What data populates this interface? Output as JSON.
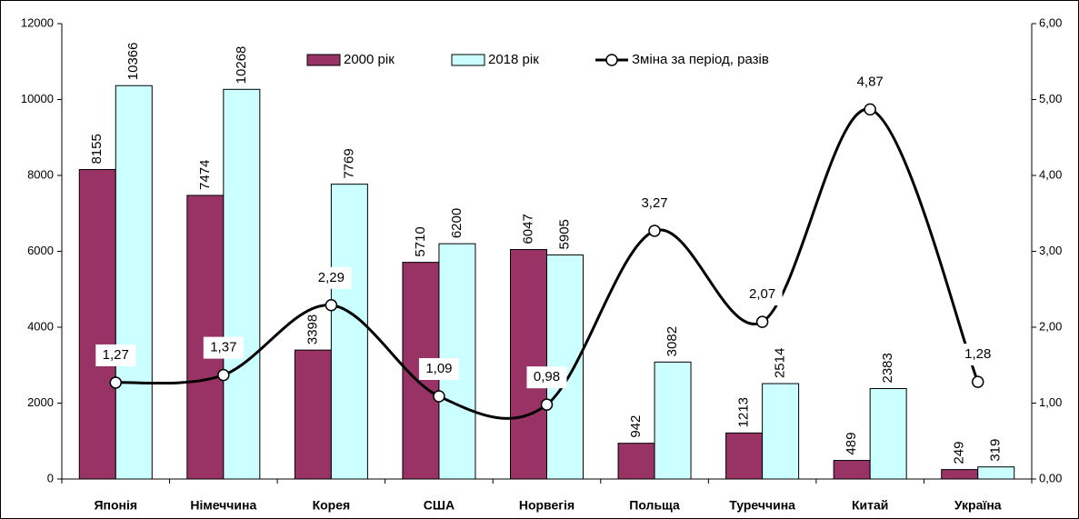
{
  "chart_data": {
    "type": "bar",
    "categories": [
      "Японія",
      "Німеччина",
      "Корея",
      "США",
      "Норвегія",
      "Польща",
      "Туреччина",
      "Китай",
      "Україна"
    ],
    "series": [
      {
        "name": "2000 рік",
        "type": "bar",
        "color": "#993366",
        "values": [
          8155,
          7474,
          3398,
          5710,
          6047,
          942,
          1213,
          489,
          249
        ]
      },
      {
        "name": "2018 рік",
        "type": "bar",
        "color": "#ccffff",
        "values": [
          10366,
          10268,
          7769,
          6200,
          5905,
          3082,
          2514,
          2383,
          319
        ]
      },
      {
        "name": "Зміна за період, разів",
        "type": "line",
        "axis": "y2",
        "color": "#000000",
        "values": [
          1.27,
          1.37,
          2.29,
          1.09,
          0.98,
          3.27,
          2.07,
          4.87,
          1.28
        ],
        "value_labels": [
          "1,27",
          "1,37",
          "2,29",
          "1,09",
          "0,98",
          "3,27",
          "2,07",
          "4,87",
          "1,28"
        ]
      }
    ],
    "ylim": [
      0,
      12000
    ],
    "yticks": [
      0,
      2000,
      4000,
      6000,
      8000,
      10000,
      12000
    ],
    "y2lim": [
      0,
      6
    ],
    "y2ticks": [
      {
        "value": 0,
        "label": "0,00"
      },
      {
        "value": 1,
        "label": "1,00"
      },
      {
        "value": 2,
        "label": "2,00"
      },
      {
        "value": 3,
        "label": "3,00"
      },
      {
        "value": 4,
        "label": "4,00"
      },
      {
        "value": 5,
        "label": "5,00"
      },
      {
        "value": 6,
        "label": "6,00"
      }
    ],
    "grid": false,
    "legend": "top"
  }
}
